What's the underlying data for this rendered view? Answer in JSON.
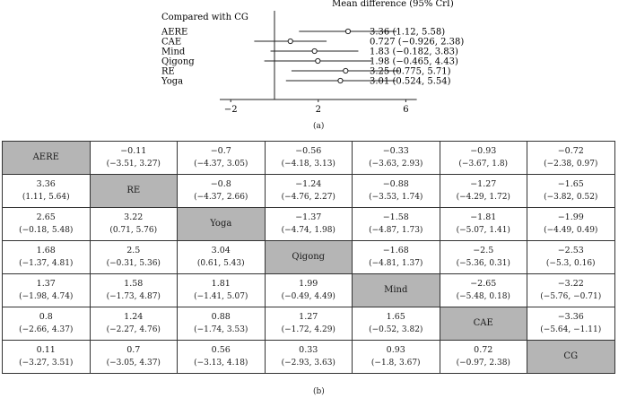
{
  "panel_a": {
    "header": "Mean difference (95% CrI)",
    "group_label": "Compared with CG",
    "caption": "(a)"
  },
  "panel_b": {
    "caption": "(b)"
  },
  "chart_data": [
    {
      "type": "forest",
      "title": "",
      "x_ticks": [
        "−2",
        "2",
        "6"
      ],
      "x_tick_values": [
        -2,
        2,
        6
      ],
      "xlim": [
        -2.5,
        6.5
      ],
      "reference_line": 0,
      "rows": [
        {
          "label": "AERE",
          "estimate": 3.36,
          "lower": 1.12,
          "upper": 5.58,
          "text": "3.36 (1.12, 5.58)"
        },
        {
          "label": "CAE",
          "estimate": 0.727,
          "lower": -0.926,
          "upper": 2.38,
          "text": "0.727 (−0.926, 2.38)"
        },
        {
          "label": "Mind",
          "estimate": 1.83,
          "lower": -0.182,
          "upper": 3.83,
          "text": "1.83 (−0.182, 3.83)"
        },
        {
          "label": "Qigong",
          "estimate": 1.98,
          "lower": -0.465,
          "upper": 4.43,
          "text": "1.98 (−0.465, 4.43)"
        },
        {
          "label": "RE",
          "estimate": 3.25,
          "lower": 0.775,
          "upper": 5.71,
          "text": "3.25 (0.775, 5.71)"
        },
        {
          "label": "Yoga",
          "estimate": 3.01,
          "lower": 0.524,
          "upper": 5.54,
          "text": "3.01 (0.524, 5.54)"
        }
      ]
    },
    {
      "type": "table",
      "treatments": [
        "AERE",
        "RE",
        "Yoga",
        "Qigong",
        "Mind",
        "CAE",
        "CG"
      ],
      "cells": [
        [
          {
            "diag": "AERE"
          },
          {
            "v": "−0.11",
            "ci": "(−3.51, 3.27)"
          },
          {
            "v": "−0.7",
            "ci": "(−4.37, 3.05)"
          },
          {
            "v": "−0.56",
            "ci": "(−4.18, 3.13)"
          },
          {
            "v": "−0.33",
            "ci": "(−3.63, 2.93)"
          },
          {
            "v": "−0.93",
            "ci": "(−3.67, 1.8)"
          },
          {
            "v": "−0.72",
            "ci": "(−2.38, 0.97)"
          }
        ],
        [
          {
            "v": "3.36",
            "ci": "(1.11, 5.64)"
          },
          {
            "diag": "RE"
          },
          {
            "v": "−0.8",
            "ci": "(−4.37, 2.66)"
          },
          {
            "v": "−1.24",
            "ci": "(−4.76, 2.27)"
          },
          {
            "v": "−0.88",
            "ci": "(−3.53, 1.74)"
          },
          {
            "v": "−1.27",
            "ci": "(−4.29, 1.72)"
          },
          {
            "v": "−1.65",
            "ci": "(−3.82, 0.52)"
          }
        ],
        [
          {
            "v": "2.65",
            "ci": "(−0.18, 5.48)"
          },
          {
            "v": "3.22",
            "ci": "(0.71, 5.76)"
          },
          {
            "diag": "Yoga"
          },
          {
            "v": "−1.37",
            "ci": "(−4.74, 1.98)"
          },
          {
            "v": "−1.58",
            "ci": "(−4.87, 1.73)"
          },
          {
            "v": "−1.81",
            "ci": "(−5.07, 1.41)"
          },
          {
            "v": "−1.99",
            "ci": "(−4.49, 0.49)"
          }
        ],
        [
          {
            "v": "1.68",
            "ci": "(−1.37, 4.81)"
          },
          {
            "v": "2.5",
            "ci": "(−0.31, 5.36)"
          },
          {
            "v": "3.04",
            "ci": "(0.61, 5.43)"
          },
          {
            "diag": "Qigong"
          },
          {
            "v": "−1.68",
            "ci": "(−4.81, 1.37)"
          },
          {
            "v": "−2.5",
            "ci": "(−5.36, 0.31)"
          },
          {
            "v": "−2.53",
            "ci": "(−5.3, 0.16)"
          }
        ],
        [
          {
            "v": "1.37",
            "ci": "(−1.98, 4.74)"
          },
          {
            "v": "1.58",
            "ci": "(−1.73, 4.87)"
          },
          {
            "v": "1.81",
            "ci": "(−1.41, 5.07)"
          },
          {
            "v": "1.99",
            "ci": "(−0.49, 4.49)"
          },
          {
            "diag": "Mind"
          },
          {
            "v": "−2.65",
            "ci": "(−5.48, 0.18)"
          },
          {
            "v": "−3.22",
            "ci": "(−5.76, −0.71)"
          }
        ],
        [
          {
            "v": "0.8",
            "ci": "(−2.66, 4.37)"
          },
          {
            "v": "1.24",
            "ci": "(−2.27, 4.76)"
          },
          {
            "v": "0.88",
            "ci": "(−1.74, 3.53)"
          },
          {
            "v": "1.27",
            "ci": "(−1.72, 4.29)"
          },
          {
            "v": "1.65",
            "ci": "(−0.52, 3.82)"
          },
          {
            "diag": "CAE"
          },
          {
            "v": "−3.36",
            "ci": "(−5.64, −1.11)"
          }
        ],
        [
          {
            "v": "0.11",
            "ci": "(−3.27, 3.51)"
          },
          {
            "v": "0.7",
            "ci": "(−3.05, 4.37)"
          },
          {
            "v": "0.56",
            "ci": "(−3.13, 4.18)"
          },
          {
            "v": "0.33",
            "ci": "(−2.93, 3.63)"
          },
          {
            "v": "0.93",
            "ci": "(−1.8, 3.67)"
          },
          {
            "v": "0.72",
            "ci": "(−0.97, 2.38)"
          },
          {
            "diag": "CG"
          }
        ]
      ]
    }
  ]
}
